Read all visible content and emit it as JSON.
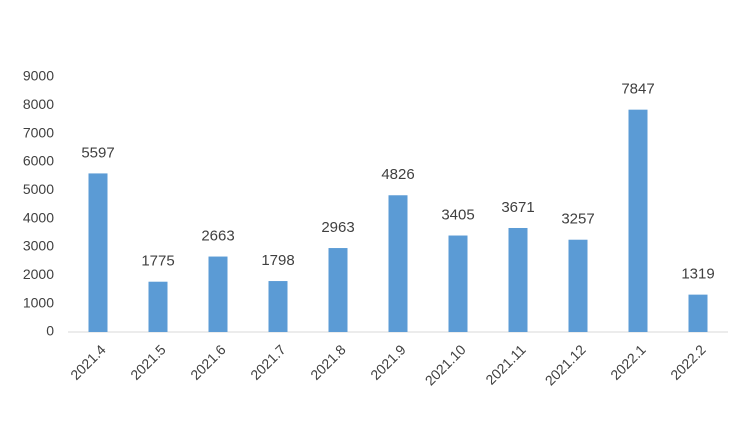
{
  "chart_data": {
    "type": "bar",
    "categories": [
      "2021.4",
      "2021.5",
      "2021.6",
      "2021.7",
      "2021.8",
      "2021.9",
      "2021.10",
      "2021.11",
      "2021.12",
      "2022.1",
      "2022.2"
    ],
    "values": [
      5597,
      1775,
      2663,
      1798,
      2963,
      4826,
      3405,
      3671,
      3257,
      7847,
      1319
    ],
    "color": "#5b9bd5",
    "ylim": [
      0,
      9000
    ],
    "yticks": [
      0,
      1000,
      2000,
      3000,
      4000,
      5000,
      6000,
      7000,
      8000,
      9000
    ],
    "grid": false
  }
}
